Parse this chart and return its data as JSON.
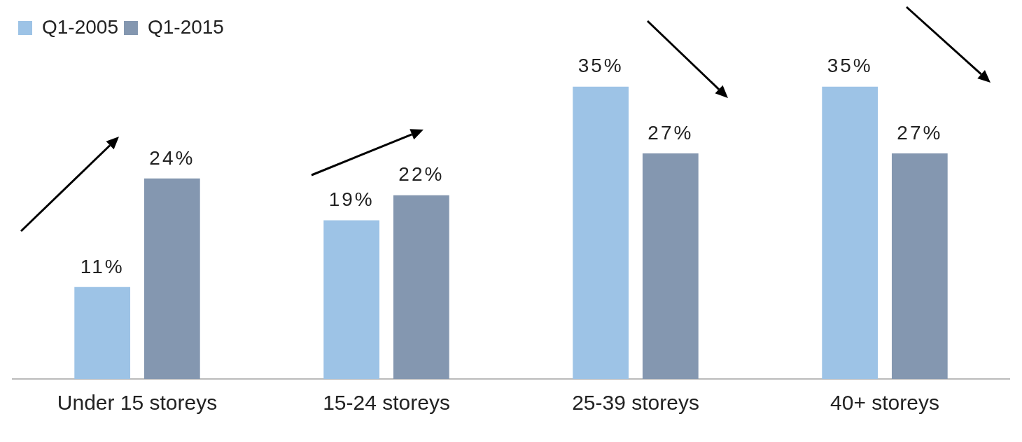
{
  "chart_data": {
    "type": "bar",
    "categories": [
      "Under 15 storeys",
      "15-24 storeys",
      "25-39 storeys",
      "40+ storeys"
    ],
    "series": [
      {
        "name": "Q1-2005",
        "color": "#9dc3e6",
        "values": [
          11,
          19,
          35,
          35
        ],
        "value_labels": [
          "11%",
          "19%",
          "35%",
          "35%"
        ]
      },
      {
        "name": "Q1-2015",
        "color": "#8497b0",
        "values": [
          24,
          22,
          27,
          27
        ],
        "value_labels": [
          "24%",
          "22%",
          "27%",
          "27%"
        ]
      }
    ],
    "legend": "top left",
    "grid": false
  }
}
